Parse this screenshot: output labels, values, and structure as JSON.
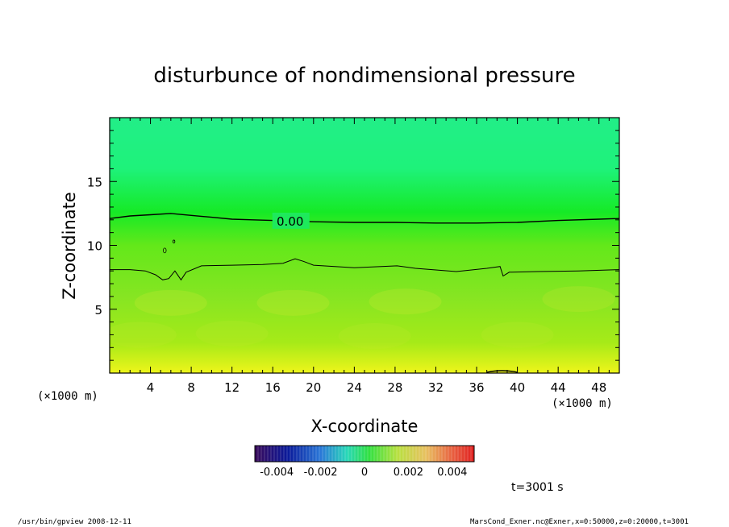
{
  "chart_data": {
    "type": "heatmap",
    "title": "disturbunce of nondimensional pressure",
    "xlabel": "X-coordinate",
    "ylabel": "Z-coordinate",
    "x_unit": "(×1000 m)",
    "x_unit_right": "(×1000 m)",
    "xlim": [
      0,
      50
    ],
    "ylim": [
      0,
      20
    ],
    "x_ticks": [
      "4",
      "8",
      "12",
      "16",
      "20",
      "24",
      "28",
      "32",
      "36",
      "40",
      "44",
      "48"
    ],
    "y_ticks": [
      "5",
      "10",
      "15"
    ],
    "contour_label": "0.00",
    "colorbar": {
      "range": [
        -0.005,
        0.005
      ],
      "tick_labels": [
        "-0.004",
        "-0.002",
        "0",
        "0.002",
        "0.004"
      ]
    },
    "zero_contour": [
      [
        0,
        12.1
      ],
      [
        2,
        12.3
      ],
      [
        4,
        12.4
      ],
      [
        6,
        12.5
      ],
      [
        8,
        12.35
      ],
      [
        10,
        12.2
      ],
      [
        12,
        12.05
      ],
      [
        14,
        12.0
      ],
      [
        16,
        11.95
      ],
      [
        18,
        11.9
      ],
      [
        20,
        11.85
      ],
      [
        24,
        11.8
      ],
      [
        28,
        11.8
      ],
      [
        32,
        11.75
      ],
      [
        36,
        11.75
      ],
      [
        40,
        11.8
      ],
      [
        44,
        11.95
      ],
      [
        48,
        12.05
      ],
      [
        50,
        12.1
      ]
    ],
    "lower_contour": [
      [
        0,
        8.1
      ],
      [
        2,
        8.1
      ],
      [
        3.5,
        8.0
      ],
      [
        4.5,
        7.7
      ],
      [
        5.2,
        7.3
      ],
      [
        5.8,
        7.4
      ],
      [
        6.4,
        8.0
      ],
      [
        7.0,
        7.3
      ],
      [
        7.5,
        7.9
      ],
      [
        9,
        8.4
      ],
      [
        12,
        8.45
      ],
      [
        15,
        8.5
      ],
      [
        17,
        8.6
      ],
      [
        18.2,
        8.95
      ],
      [
        19,
        8.75
      ],
      [
        20,
        8.45
      ],
      [
        24,
        8.25
      ],
      [
        28.2,
        8.4
      ],
      [
        30,
        8.2
      ],
      [
        34,
        7.95
      ],
      [
        37,
        8.2
      ],
      [
        38.3,
        8.35
      ],
      [
        38.6,
        7.6
      ],
      [
        39.2,
        7.9
      ],
      [
        42,
        7.95
      ],
      [
        46,
        8.0
      ],
      [
        50,
        8.1
      ]
    ],
    "vertical_profile": [
      {
        "z": 0,
        "value": 0.0019
      },
      {
        "z": 1,
        "value": 0.0016
      },
      {
        "z": 2,
        "value": 0.0013
      },
      {
        "z": 4,
        "value": 0.0011
      },
      {
        "z": 6,
        "value": 0.001
      },
      {
        "z": 8,
        "value": 0.0008
      },
      {
        "z": 10,
        "value": 0.0004
      },
      {
        "z": 11.8,
        "value": 0.0
      },
      {
        "z": 14,
        "value": -0.0005
      },
      {
        "z": 17,
        "value": -0.0008
      },
      {
        "z": 20,
        "value": -0.0008
      }
    ]
  },
  "annotations": {
    "time": "t=3001 s",
    "footer_left": "/usr/bin/gpview   2008-12-11",
    "footer_right": "MarsCond_Exner.nc@Exner,x=0:50000,z=0:20000,t=3001"
  }
}
